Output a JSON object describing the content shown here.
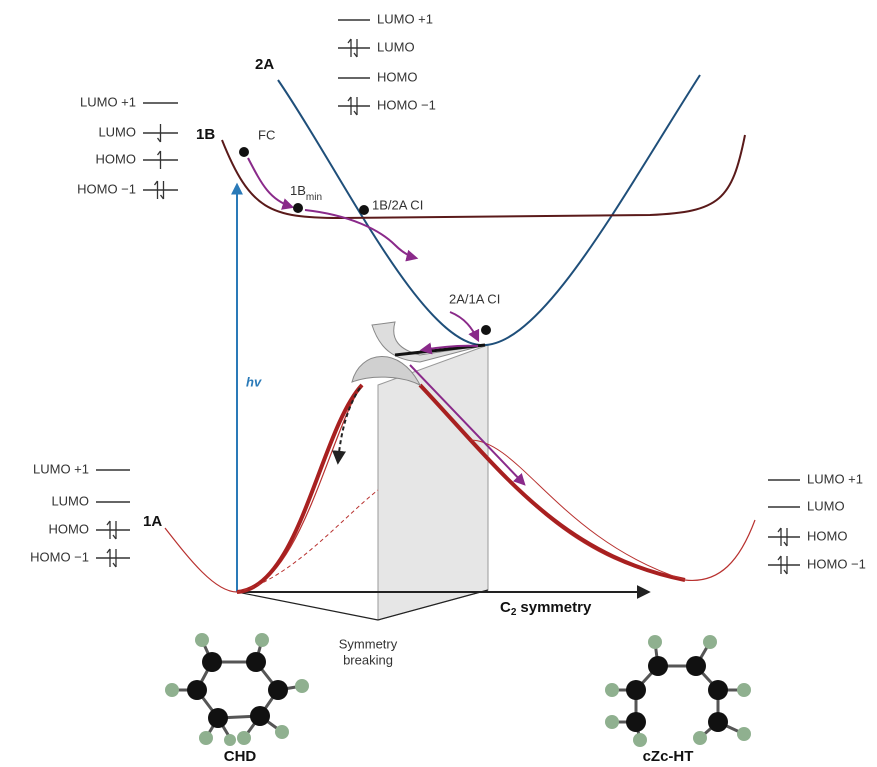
{
  "orbital_panels": [
    {
      "levels": [
        "LUMO +1",
        "LUMO",
        "HOMO",
        "HOMO −1"
      ]
    },
    {
      "levels": [
        "LUMO +1",
        "LUMO",
        "HOMO",
        "HOMO −1"
      ]
    },
    {
      "levels": [
        "LUMO +1",
        "LUMO",
        "HOMO",
        "HOMO −1"
      ]
    },
    {
      "levels": [
        "LUMO +1",
        "LUMO",
        "HOMO",
        "HOMO −1"
      ]
    }
  ],
  "states": [
    "2A",
    "1B",
    "1A"
  ],
  "points": {
    "fc": "FC",
    "b_min": "1B",
    "b_min_sub": "min",
    "ci_1b_2a": "1B/2A CI",
    "ci_2a_1a": "2A/1A CI"
  },
  "excitation": "hv",
  "axis": {
    "c": "C",
    "sub": "2",
    "rest": "symmetry"
  },
  "symmetry_breaking": [
    "Symmetry",
    "breaking"
  ],
  "molecules": [
    "CHD",
    "cZc-HT"
  ]
}
